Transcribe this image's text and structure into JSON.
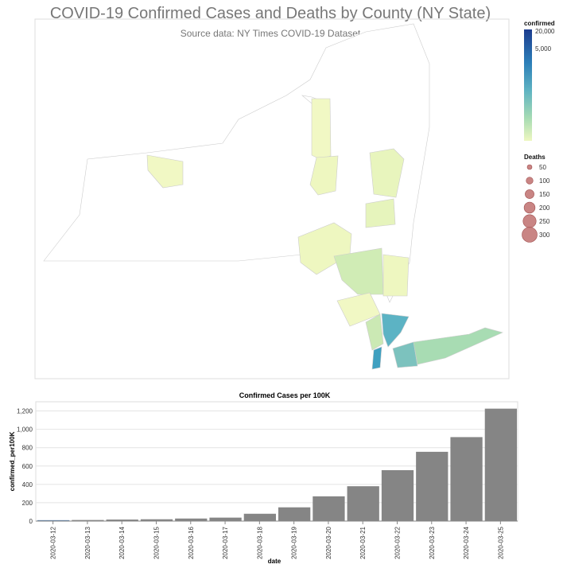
{
  "map": {
    "title": "COVID-19 Confirmed Cases and Deaths by County (NY State)",
    "subtitle": "Source data: NY Times COVID-19 Dataset",
    "color_legend": {
      "title": "confirmed",
      "labels": [
        "20,000",
        "5,000"
      ],
      "colors": [
        "#1c3c8e",
        "#2c7fb8",
        "#5fb3c2",
        "#a8dcb3",
        "#eef7c0"
      ]
    },
    "size_legend": {
      "title": "Deaths",
      "labels": [
        "50",
        "100",
        "150",
        "200",
        "250",
        "300"
      ],
      "color": "#c0706f"
    }
  },
  "chart_data": {
    "type": "bar",
    "title": "Confirmed Cases per 100K",
    "xlabel": "date",
    "ylabel": "confirmed_per100K",
    "categories": [
      "2020-03-12",
      "2020-03-13",
      "2020-03-14",
      "2020-03-15",
      "2020-03-16",
      "2020-03-17",
      "2020-03-18",
      "2020-03-19",
      "2020-03-20",
      "2020-03-21",
      "2020-03-22",
      "2020-03-23",
      "2020-03-24",
      "2020-03-25"
    ],
    "values": [
      10,
      12,
      17,
      20,
      28,
      38,
      80,
      150,
      270,
      380,
      555,
      755,
      915,
      1225
    ],
    "highlighted": "2020-03-12",
    "yticks": [
      "0",
      "200",
      "400",
      "600",
      "800",
      "1,000",
      "1,200"
    ],
    "ylim": [
      0,
      1300
    ],
    "bar_color": "#858585",
    "highlight_color": "#4c78a8",
    "grid": true
  }
}
